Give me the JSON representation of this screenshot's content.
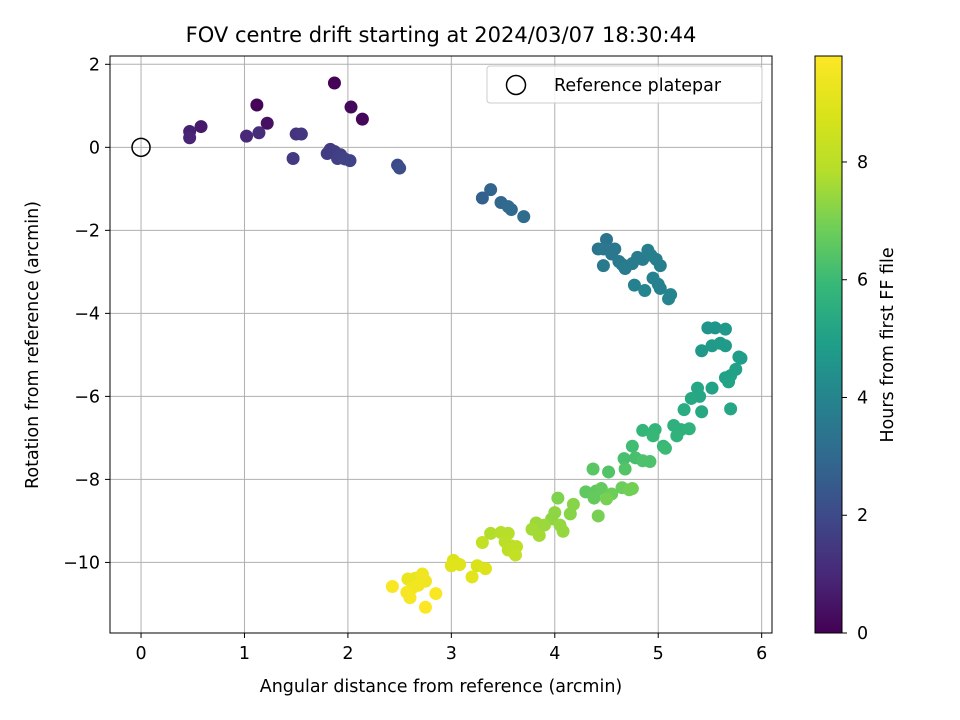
{
  "chart_data": {
    "type": "scatter",
    "title": "FOV centre drift starting at 2024/03/07 18:30:44",
    "xlabel": "Angular distance from reference (arcmin)",
    "ylabel": "Rotation from reference (arcmin)",
    "xlim": [
      -0.3,
      6.1
    ],
    "ylim": [
      -11.7,
      2.2
    ],
    "xticks": [
      0,
      1,
      2,
      3,
      4,
      5,
      6
    ],
    "yticks": [
      2,
      0,
      -2,
      -4,
      -6,
      -8,
      -10
    ],
    "grid": true,
    "legend": {
      "position": "top-right",
      "entries": [
        "Reference platepar"
      ]
    },
    "reference_point": {
      "x": 0,
      "y": 0
    },
    "colorbar": {
      "label": "Hours from first FF file",
      "colormap": "viridis",
      "range": [
        0,
        9.8
      ],
      "ticks": [
        0,
        2,
        4,
        6,
        8
      ]
    },
    "points": [
      {
        "x": 1.12,
        "y": 1.02,
        "h": 0.1
      },
      {
        "x": 1.87,
        "y": 1.55,
        "h": 0.05
      },
      {
        "x": 2.03,
        "y": 0.97,
        "h": 0.2
      },
      {
        "x": 2.14,
        "y": 0.68,
        "h": 0.15
      },
      {
        "x": 1.22,
        "y": 0.58,
        "h": 0.4
      },
      {
        "x": 0.58,
        "y": 0.5,
        "h": 0.6
      },
      {
        "x": 0.47,
        "y": 0.38,
        "h": 0.8
      },
      {
        "x": 0.47,
        "y": 0.23,
        "h": 0.9
      },
      {
        "x": 1.02,
        "y": 0.27,
        "h": 1.0
      },
      {
        "x": 1.14,
        "y": 0.35,
        "h": 1.1
      },
      {
        "x": 1.5,
        "y": 0.32,
        "h": 1.3
      },
      {
        "x": 1.55,
        "y": 0.32,
        "h": 1.4
      },
      {
        "x": 1.47,
        "y": -0.27,
        "h": 1.5
      },
      {
        "x": 1.83,
        "y": -0.05,
        "h": 1.5
      },
      {
        "x": 1.8,
        "y": -0.15,
        "h": 1.6
      },
      {
        "x": 1.87,
        "y": -0.1,
        "h": 1.6
      },
      {
        "x": 1.9,
        "y": -0.27,
        "h": 1.7
      },
      {
        "x": 1.93,
        "y": -0.18,
        "h": 1.7
      },
      {
        "x": 1.97,
        "y": -0.28,
        "h": 1.8
      },
      {
        "x": 2.02,
        "y": -0.32,
        "h": 1.8
      },
      {
        "x": 2.48,
        "y": -0.43,
        "h": 2.0
      },
      {
        "x": 2.5,
        "y": -0.5,
        "h": 2.1
      },
      {
        "x": 3.3,
        "y": -1.22,
        "h": 2.7
      },
      {
        "x": 3.38,
        "y": -1.02,
        "h": 2.8
      },
      {
        "x": 3.48,
        "y": -1.33,
        "h": 2.9
      },
      {
        "x": 3.55,
        "y": -1.43,
        "h": 3.0
      },
      {
        "x": 3.58,
        "y": -1.5,
        "h": 3.0
      },
      {
        "x": 3.7,
        "y": -1.67,
        "h": 3.1
      },
      {
        "x": 4.42,
        "y": -2.45,
        "h": 3.4
      },
      {
        "x": 4.5,
        "y": -2.22,
        "h": 3.4
      },
      {
        "x": 4.47,
        "y": -2.45,
        "h": 3.5
      },
      {
        "x": 4.55,
        "y": -2.57,
        "h": 3.5
      },
      {
        "x": 4.58,
        "y": -2.45,
        "h": 3.5
      },
      {
        "x": 4.47,
        "y": -2.85,
        "h": 3.6
      },
      {
        "x": 4.62,
        "y": -2.75,
        "h": 3.6
      },
      {
        "x": 4.65,
        "y": -2.82,
        "h": 3.6
      },
      {
        "x": 4.68,
        "y": -2.92,
        "h": 3.7
      },
      {
        "x": 4.75,
        "y": -2.8,
        "h": 3.7
      },
      {
        "x": 4.8,
        "y": -2.65,
        "h": 3.7
      },
      {
        "x": 4.85,
        "y": -2.7,
        "h": 3.7
      },
      {
        "x": 4.9,
        "y": -2.48,
        "h": 3.8
      },
      {
        "x": 4.93,
        "y": -2.6,
        "h": 3.8
      },
      {
        "x": 4.98,
        "y": -2.7,
        "h": 3.8
      },
      {
        "x": 5.02,
        "y": -2.85,
        "h": 3.8
      },
      {
        "x": 4.95,
        "y": -3.15,
        "h": 3.9
      },
      {
        "x": 5.0,
        "y": -3.3,
        "h": 3.9
      },
      {
        "x": 5.02,
        "y": -3.4,
        "h": 3.9
      },
      {
        "x": 4.77,
        "y": -3.32,
        "h": 3.9
      },
      {
        "x": 4.87,
        "y": -3.45,
        "h": 4.0
      },
      {
        "x": 5.12,
        "y": -3.55,
        "h": 4.0
      },
      {
        "x": 5.1,
        "y": -3.65,
        "h": 4.0
      },
      {
        "x": 5.48,
        "y": -4.35,
        "h": 4.6
      },
      {
        "x": 5.55,
        "y": -4.35,
        "h": 4.6
      },
      {
        "x": 5.65,
        "y": -4.38,
        "h": 4.7
      },
      {
        "x": 5.42,
        "y": -4.9,
        "h": 4.7
      },
      {
        "x": 5.52,
        "y": -4.78,
        "h": 4.8
      },
      {
        "x": 5.6,
        "y": -4.72,
        "h": 4.8
      },
      {
        "x": 5.65,
        "y": -4.78,
        "h": 4.8
      },
      {
        "x": 5.78,
        "y": -5.05,
        "h": 4.9
      },
      {
        "x": 5.8,
        "y": -5.08,
        "h": 4.9
      },
      {
        "x": 5.75,
        "y": -5.35,
        "h": 5.0
      },
      {
        "x": 5.7,
        "y": -5.5,
        "h": 5.0
      },
      {
        "x": 5.65,
        "y": -5.55,
        "h": 5.0
      },
      {
        "x": 5.68,
        "y": -5.65,
        "h": 5.1
      },
      {
        "x": 5.52,
        "y": -5.8,
        "h": 5.1
      },
      {
        "x": 5.38,
        "y": -5.8,
        "h": 5.2
      },
      {
        "x": 5.4,
        "y": -6.0,
        "h": 5.2
      },
      {
        "x": 5.32,
        "y": -6.05,
        "h": 5.3
      },
      {
        "x": 5.42,
        "y": -6.37,
        "h": 5.3
      },
      {
        "x": 5.25,
        "y": -6.32,
        "h": 5.4
      },
      {
        "x": 5.7,
        "y": -6.3,
        "h": 5.2
      },
      {
        "x": 5.15,
        "y": -6.7,
        "h": 5.6
      },
      {
        "x": 5.22,
        "y": -6.8,
        "h": 5.6
      },
      {
        "x": 5.3,
        "y": -6.78,
        "h": 5.7
      },
      {
        "x": 5.18,
        "y": -6.95,
        "h": 5.7
      },
      {
        "x": 4.97,
        "y": -6.8,
        "h": 5.8
      },
      {
        "x": 4.85,
        "y": -6.82,
        "h": 5.8
      },
      {
        "x": 4.95,
        "y": -6.95,
        "h": 5.9
      },
      {
        "x": 5.05,
        "y": -7.2,
        "h": 5.9
      },
      {
        "x": 5.07,
        "y": -7.25,
        "h": 6.0
      },
      {
        "x": 4.75,
        "y": -7.2,
        "h": 6.1
      },
      {
        "x": 4.67,
        "y": -7.5,
        "h": 6.2
      },
      {
        "x": 4.78,
        "y": -7.48,
        "h": 6.2
      },
      {
        "x": 4.85,
        "y": -7.55,
        "h": 6.3
      },
      {
        "x": 4.92,
        "y": -7.57,
        "h": 6.3
      },
      {
        "x": 4.68,
        "y": -7.75,
        "h": 6.4
      },
      {
        "x": 4.52,
        "y": -7.82,
        "h": 6.4
      },
      {
        "x": 4.37,
        "y": -7.75,
        "h": 6.5
      },
      {
        "x": 4.3,
        "y": -8.3,
        "h": 6.6
      },
      {
        "x": 4.4,
        "y": -8.28,
        "h": 6.6
      },
      {
        "x": 4.45,
        "y": -8.22,
        "h": 6.7
      },
      {
        "x": 4.38,
        "y": -8.45,
        "h": 6.7
      },
      {
        "x": 4.55,
        "y": -8.35,
        "h": 6.8
      },
      {
        "x": 4.65,
        "y": -8.2,
        "h": 6.8
      },
      {
        "x": 4.72,
        "y": -8.25,
        "h": 6.9
      },
      {
        "x": 4.75,
        "y": -8.22,
        "h": 6.9
      },
      {
        "x": 4.5,
        "y": -8.47,
        "h": 7.0
      },
      {
        "x": 4.42,
        "y": -8.88,
        "h": 7.0
      },
      {
        "x": 4.03,
        "y": -8.45,
        "h": 7.1
      },
      {
        "x": 4.18,
        "y": -8.6,
        "h": 7.2
      },
      {
        "x": 4.15,
        "y": -8.83,
        "h": 7.2
      },
      {
        "x": 4.0,
        "y": -8.8,
        "h": 7.3
      },
      {
        "x": 3.97,
        "y": -8.95,
        "h": 7.3
      },
      {
        "x": 4.05,
        "y": -9.1,
        "h": 7.4
      },
      {
        "x": 4.08,
        "y": -9.25,
        "h": 7.4
      },
      {
        "x": 3.9,
        "y": -9.1,
        "h": 7.5
      },
      {
        "x": 3.82,
        "y": -9.05,
        "h": 7.5
      },
      {
        "x": 3.78,
        "y": -9.2,
        "h": 7.6
      },
      {
        "x": 3.85,
        "y": -9.35,
        "h": 7.6
      },
      {
        "x": 3.38,
        "y": -9.3,
        "h": 7.8
      },
      {
        "x": 3.48,
        "y": -9.28,
        "h": 7.9
      },
      {
        "x": 3.55,
        "y": -9.3,
        "h": 7.9
      },
      {
        "x": 3.52,
        "y": -9.5,
        "h": 8.0
      },
      {
        "x": 3.58,
        "y": -9.6,
        "h": 8.0
      },
      {
        "x": 3.63,
        "y": -9.62,
        "h": 8.1
      },
      {
        "x": 3.55,
        "y": -9.7,
        "h": 8.1
      },
      {
        "x": 3.62,
        "y": -9.82,
        "h": 8.2
      },
      {
        "x": 3.3,
        "y": -9.52,
        "h": 8.2
      },
      {
        "x": 3.02,
        "y": -9.95,
        "h": 8.9
      },
      {
        "x": 3.08,
        "y": -10.05,
        "h": 9.0
      },
      {
        "x": 3.0,
        "y": -10.08,
        "h": 9.0
      },
      {
        "x": 3.25,
        "y": -10.08,
        "h": 8.8
      },
      {
        "x": 3.33,
        "y": -10.15,
        "h": 8.9
      },
      {
        "x": 3.2,
        "y": -10.35,
        "h": 9.1
      },
      {
        "x": 2.58,
        "y": -10.4,
        "h": 9.3
      },
      {
        "x": 2.65,
        "y": -10.38,
        "h": 9.3
      },
      {
        "x": 2.72,
        "y": -10.28,
        "h": 9.4
      },
      {
        "x": 2.75,
        "y": -10.45,
        "h": 9.4
      },
      {
        "x": 2.68,
        "y": -10.55,
        "h": 9.5
      },
      {
        "x": 2.62,
        "y": -10.62,
        "h": 9.5
      },
      {
        "x": 2.57,
        "y": -10.72,
        "h": 9.6
      },
      {
        "x": 2.6,
        "y": -10.85,
        "h": 9.6
      },
      {
        "x": 2.43,
        "y": -10.58,
        "h": 9.7
      },
      {
        "x": 2.85,
        "y": -10.75,
        "h": 9.7
      },
      {
        "x": 2.75,
        "y": -11.08,
        "h": 9.8
      }
    ]
  }
}
